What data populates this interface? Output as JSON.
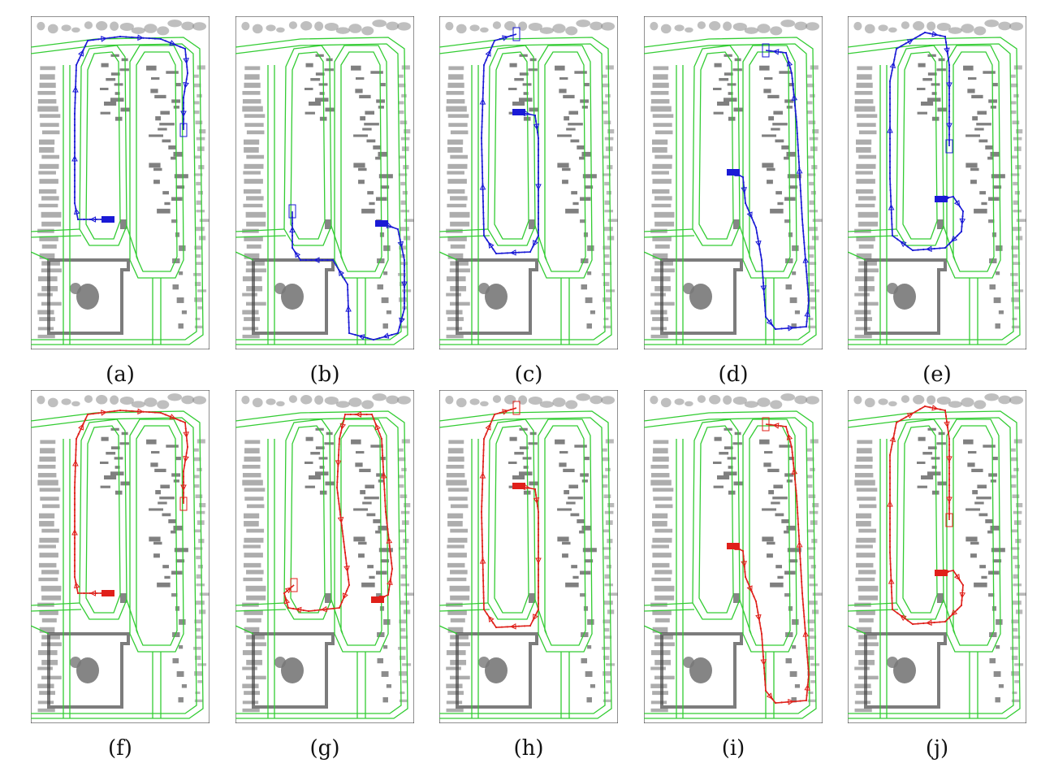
{
  "figure": {
    "panels": [
      {
        "label": "(a)",
        "color": "#1a1ad6",
        "route": "a"
      },
      {
        "label": "(b)",
        "color": "#1a1ad6",
        "route": "b"
      },
      {
        "label": "(c)",
        "color": "#1a1ad6",
        "route": "c"
      },
      {
        "label": "(d)",
        "color": "#1a1ad6",
        "route": "d"
      },
      {
        "label": "(e)",
        "color": "#1a1ad6",
        "route": "e"
      },
      {
        "label": "(f)",
        "color": "#e0201a",
        "route": "a"
      },
      {
        "label": "(g)",
        "color": "#e0201a",
        "route": "g"
      },
      {
        "label": "(h)",
        "color": "#e0201a",
        "route": "c"
      },
      {
        "label": "(i)",
        "color": "#e0201a",
        "route": "d"
      },
      {
        "label": "(j)",
        "color": "#e0201a",
        "route": "e"
      }
    ],
    "road_color": "#33cc33",
    "building_color": "#8a8a8a"
  }
}
